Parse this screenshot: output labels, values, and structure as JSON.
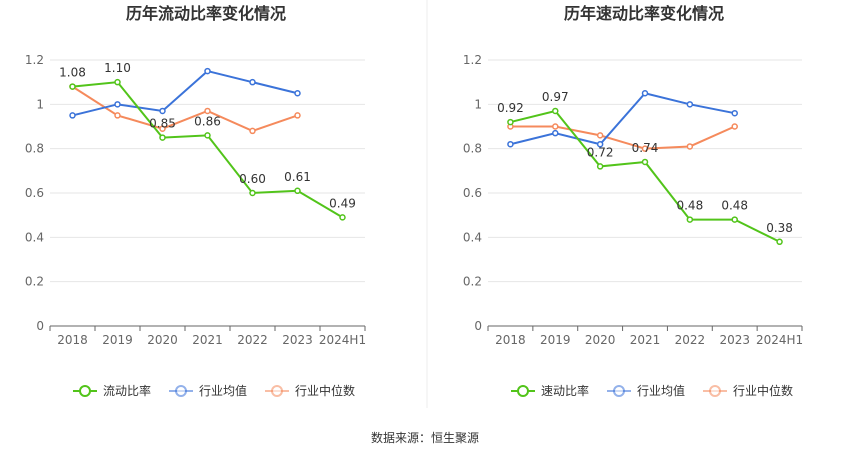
{
  "source_text": "数据来源：恒生聚源",
  "chart_data": [
    {
      "type": "line",
      "title": "历年流动比率变化情况",
      "categories": [
        "2018",
        "2019",
        "2020",
        "2021",
        "2022",
        "2023",
        "2024H1"
      ],
      "ylim": [
        0,
        1.2
      ],
      "yticks": [
        "0",
        "0.2",
        "0.4",
        "0.6",
        "0.8",
        "1",
        "1.2"
      ],
      "grid": true,
      "legend_position": "bottom",
      "series": [
        {
          "name": "流动比率",
          "color": "#52c41a",
          "labels": true,
          "values": [
            1.08,
            1.1,
            0.85,
            0.86,
            0.6,
            0.61,
            0.49
          ]
        },
        {
          "name": "行业均值",
          "color": "#3b73d9",
          "labels": false,
          "values": [
            0.95,
            1.0,
            0.97,
            1.15,
            1.1,
            1.05,
            null
          ]
        },
        {
          "name": "行业中位数",
          "color": "#f58a5c",
          "labels": false,
          "values": [
            1.08,
            0.95,
            0.89,
            0.97,
            0.88,
            0.95,
            null
          ]
        }
      ]
    },
    {
      "type": "line",
      "title": "历年速动比率变化情况",
      "categories": [
        "2018",
        "2019",
        "2020",
        "2021",
        "2022",
        "2023",
        "2024H1"
      ],
      "ylim": [
        0,
        1.2
      ],
      "yticks": [
        "0",
        "0.2",
        "0.4",
        "0.6",
        "0.8",
        "1",
        "1.2"
      ],
      "grid": true,
      "legend_position": "bottom",
      "series": [
        {
          "name": "速动比率",
          "color": "#52c41a",
          "labels": true,
          "values": [
            0.92,
            0.97,
            0.72,
            0.74,
            0.48,
            0.48,
            0.38
          ]
        },
        {
          "name": "行业均值",
          "color": "#3b73d9",
          "labels": false,
          "values": [
            0.82,
            0.87,
            0.82,
            1.05,
            1.0,
            0.96,
            null
          ]
        },
        {
          "name": "行业中位数",
          "color": "#f58a5c",
          "labels": false,
          "values": [
            0.9,
            0.9,
            0.86,
            0.8,
            0.81,
            0.9,
            null
          ]
        }
      ]
    }
  ]
}
